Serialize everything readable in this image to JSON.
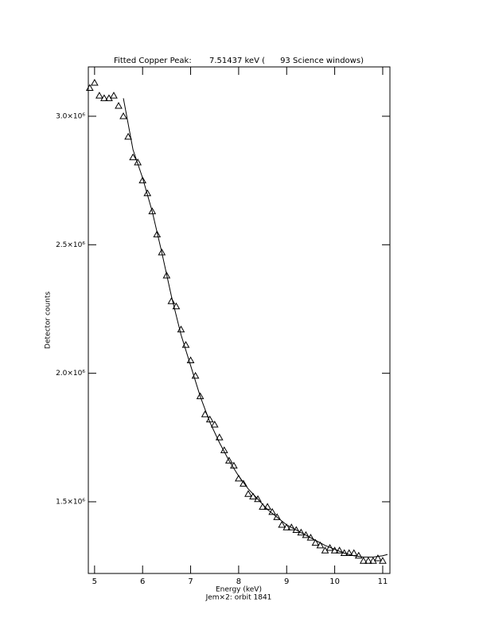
{
  "chart_data": {
    "type": "scatter",
    "title": "Fitted Copper Peak:       7.51437 keV (      93 Science windows)",
    "x_label": "Energy (keV)",
    "subtitle": "Jem×2: orbit 1841",
    "y_label": "Detector counts",
    "xlim": [
      4.87,
      11.15
    ],
    "ylim": [
      1221000,
      3192000
    ],
    "xticks": [
      5,
      6,
      7,
      8,
      9,
      10,
      11
    ],
    "yticks": [
      {
        "value": 1500000,
        "label": "1.5×10⁶"
      },
      {
        "value": 2000000,
        "label": "2.0×10⁶"
      },
      {
        "value": 2500000,
        "label": "2.5×10⁶"
      },
      {
        "value": 3000000,
        "label": "3.0×10⁶"
      }
    ],
    "color": "#000000",
    "series": [
      {
        "marker": "triangle",
        "x": [
          4.9,
          5.0,
          5.1,
          5.2,
          5.3,
          5.4,
          5.5,
          5.6,
          5.7,
          5.8,
          5.9,
          6.0,
          6.1,
          6.2,
          6.3,
          6.4,
          6.5,
          6.6,
          6.7,
          6.8,
          6.9,
          7.0,
          7.1,
          7.2,
          7.3,
          7.4,
          7.5,
          7.6,
          7.7,
          7.8,
          7.9,
          8.0,
          8.1,
          8.2,
          8.3,
          8.4,
          8.5,
          8.6,
          8.7,
          8.8,
          8.9,
          9.0,
          9.1,
          9.2,
          9.3,
          9.4,
          9.5,
          9.6,
          9.7,
          9.8,
          9.9,
          10.0,
          10.1,
          10.2,
          10.3,
          10.4,
          10.5,
          10.6,
          10.7,
          10.8,
          10.9,
          11.0
        ],
        "values": [
          3110000,
          3130000,
          3080000,
          3070000,
          3070000,
          3080000,
          3040000,
          3000000,
          2920000,
          2840000,
          2820000,
          2750000,
          2700000,
          2630000,
          2540000,
          2470000,
          2380000,
          2280000,
          2260000,
          2170000,
          2110000,
          2050000,
          1990000,
          1910000,
          1840000,
          1820000,
          1800000,
          1750000,
          1700000,
          1660000,
          1640000,
          1590000,
          1570000,
          1530000,
          1520000,
          1510000,
          1480000,
          1480000,
          1460000,
          1440000,
          1410000,
          1400000,
          1400000,
          1390000,
          1380000,
          1370000,
          1360000,
          1340000,
          1330000,
          1310000,
          1320000,
          1310000,
          1310000,
          1300000,
          1300000,
          1300000,
          1290000,
          1270000,
          1270000,
          1270000,
          1280000,
          1270000
        ]
      },
      {
        "marker": "line",
        "x": [
          5.6,
          5.8,
          6.0,
          6.2,
          6.4,
          6.6,
          6.8,
          7.0,
          7.2,
          7.4,
          7.6,
          7.8,
          8.0,
          8.2,
          8.4,
          8.6,
          8.8,
          9.0,
          9.2,
          9.4,
          9.6,
          9.8,
          10.0,
          10.2,
          10.4,
          10.6,
          10.8,
          11.0,
          11.1
        ],
        "values": [
          3070000,
          2870000,
          2760000,
          2630000,
          2470000,
          2300000,
          2150000,
          2030000,
          1910000,
          1810000,
          1730000,
          1660000,
          1600000,
          1550000,
          1510000,
          1470000,
          1440000,
          1410000,
          1390000,
          1370000,
          1350000,
          1330000,
          1315000,
          1300000,
          1290000,
          1285000,
          1285000,
          1290000,
          1295000
        ]
      }
    ]
  }
}
